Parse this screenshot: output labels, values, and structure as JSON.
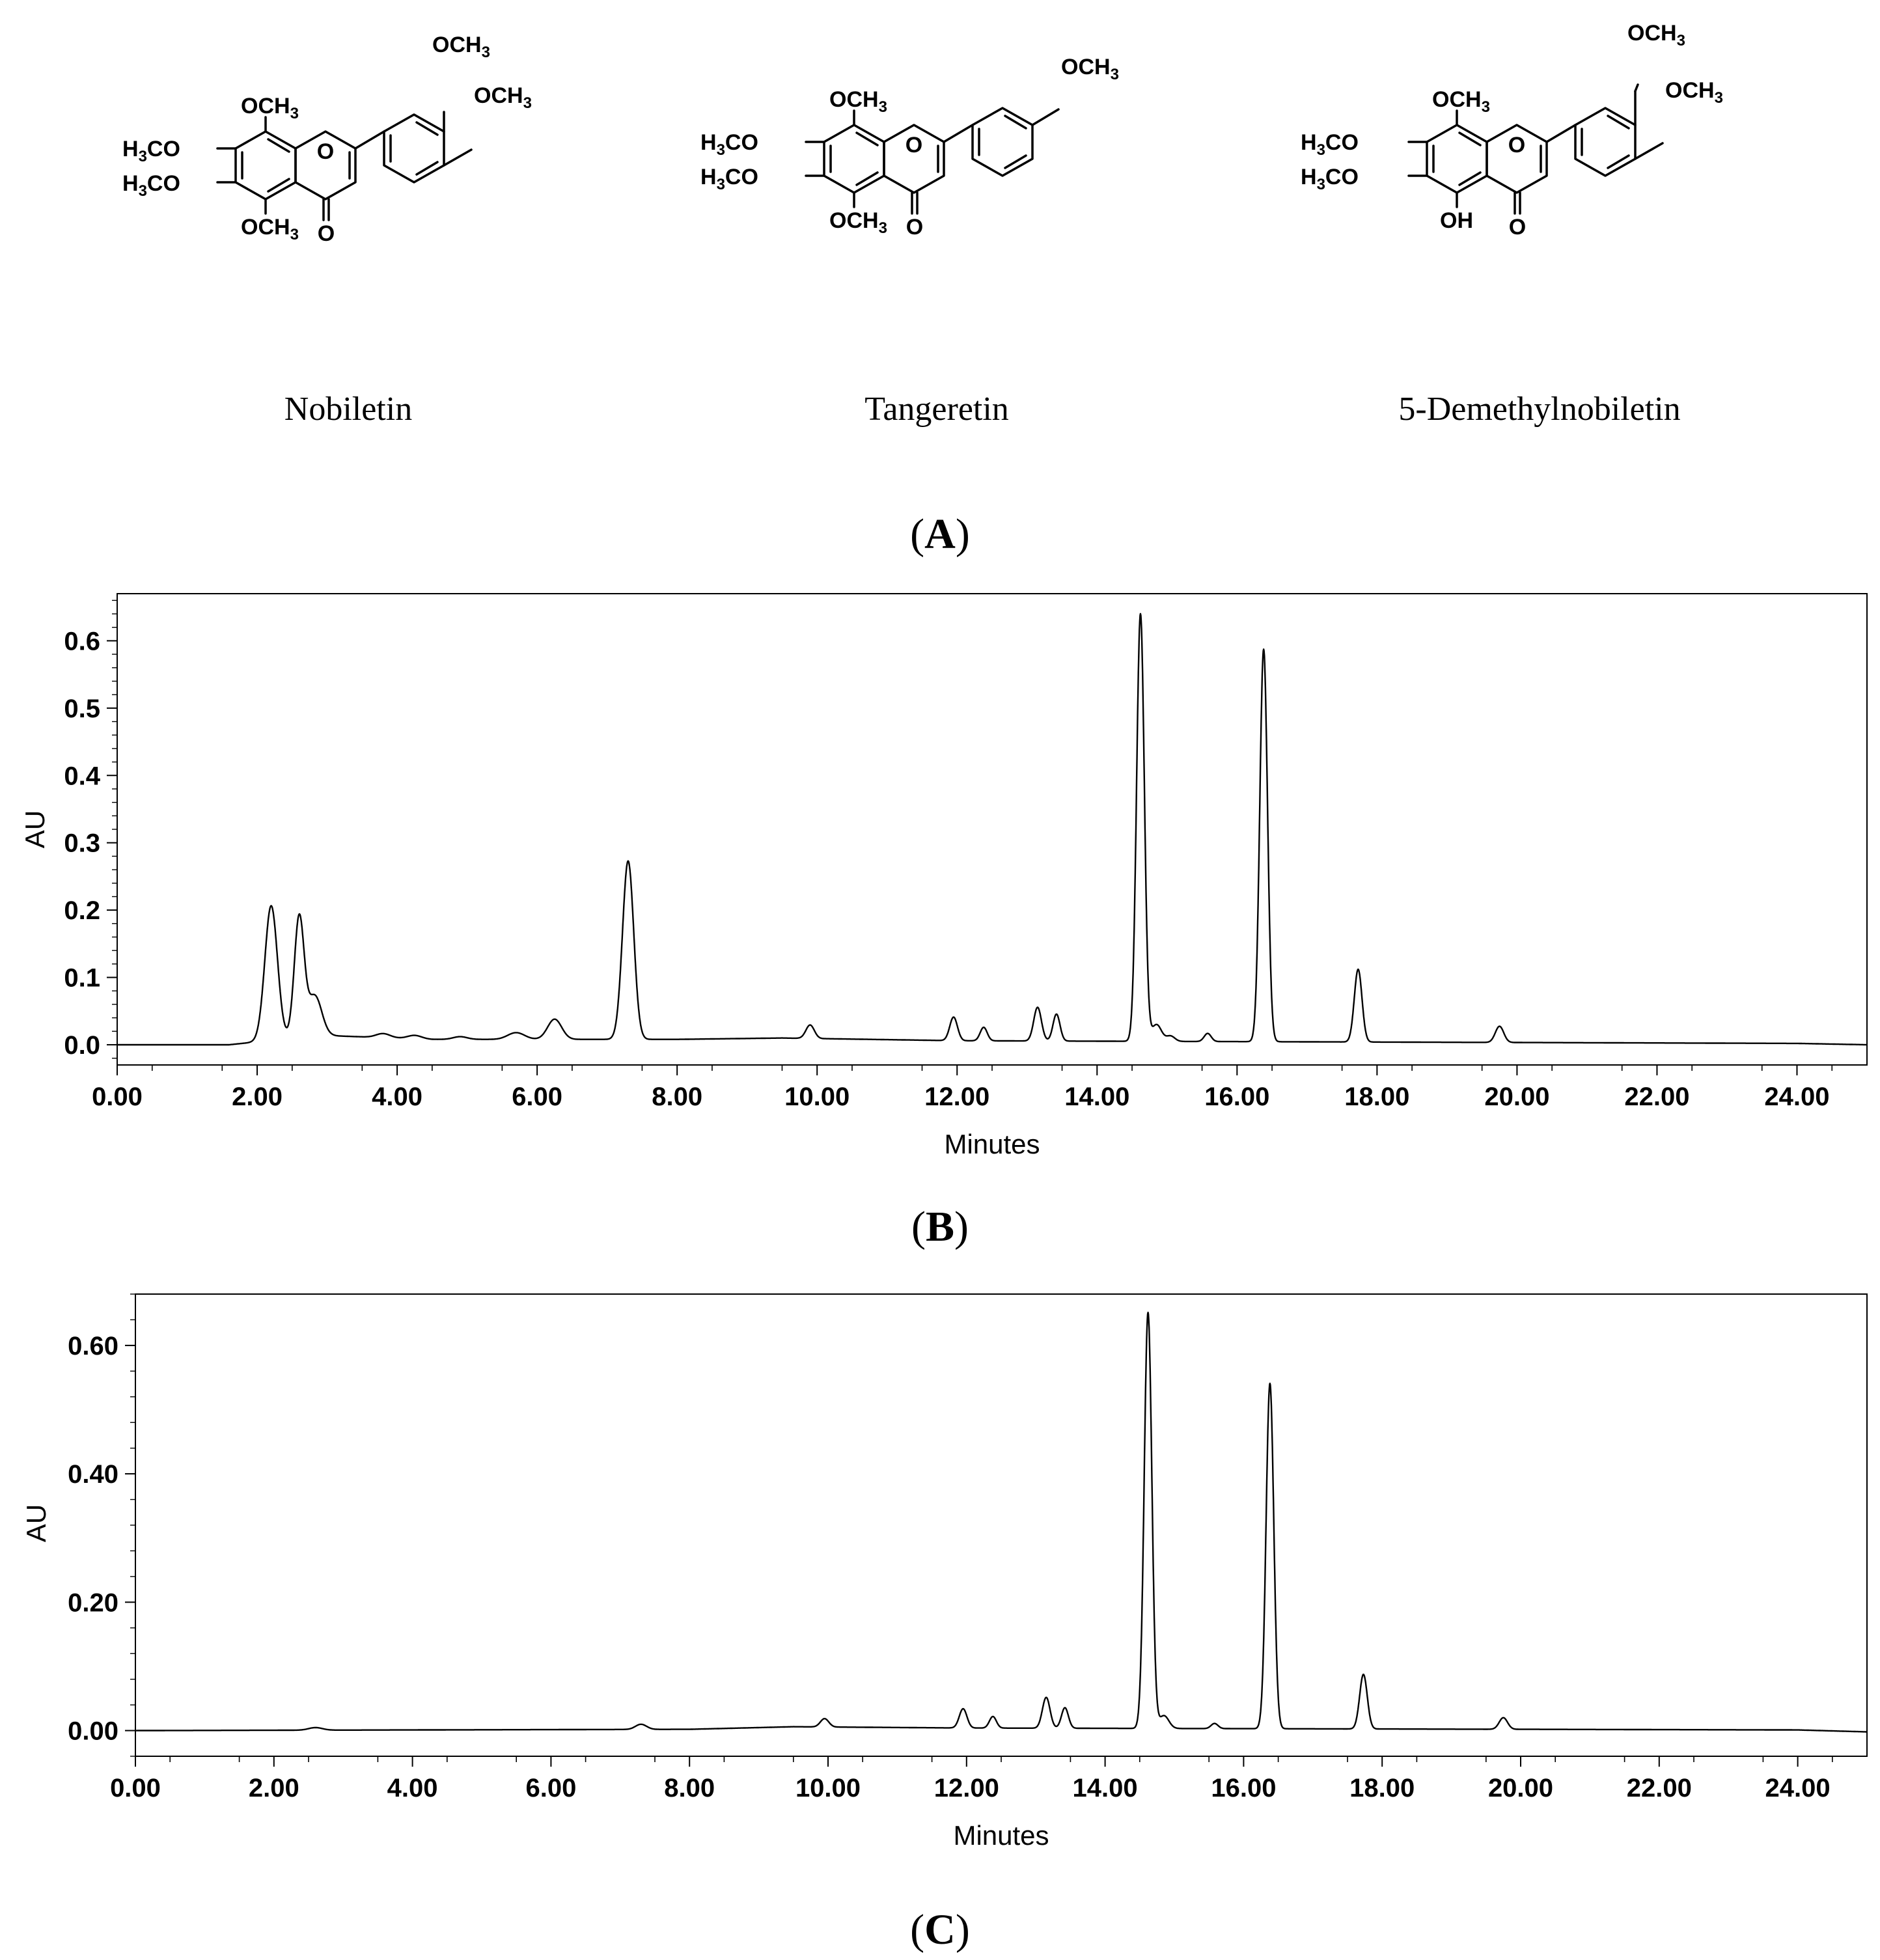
{
  "panel_a": {
    "label_prefix": "(",
    "label_letter": "A",
    "label_suffix": ")",
    "compounds": [
      {
        "name": "Nobiletin",
        "groups": {
          "g8": "OCH",
          "g8sub": "3",
          "g7pre": "H",
          "g7sub": "3",
          "g7post": "CO",
          "g6pre": "H",
          "g6sub": "3",
          "g6post": "CO",
          "g5": "OCH",
          "g5sub": "3",
          "c4": "O",
          "ring_o": "O",
          "g3p": "OCH",
          "g3psub": "3",
          "g4p": "OCH",
          "g4psub": "3"
        }
      },
      {
        "name": "Tangeretin",
        "groups": {
          "g8": "OCH",
          "g8sub": "3",
          "g7pre": "H",
          "g7sub": "3",
          "g7post": "CO",
          "g6pre": "H",
          "g6sub": "3",
          "g6post": "CO",
          "g5": "OCH",
          "g5sub": "3",
          "c4": "O",
          "ring_o": "O",
          "g4p": "OCH",
          "g4psub": "3"
        }
      },
      {
        "name": "5-Demethylnobiletin",
        "groups": {
          "g8": "OCH",
          "g8sub": "3",
          "g7pre": "H",
          "g7sub": "3",
          "g7post": "CO",
          "g6pre": "H",
          "g6sub": "3",
          "g6post": "CO",
          "g5": "OH",
          "c4": "O",
          "ring_o": "O",
          "g3p": "OCH",
          "g3psub": "3",
          "g4p": "OCH",
          "g4psub": "3"
        }
      }
    ]
  },
  "chart_data": [
    {
      "panel": "B",
      "label_prefix": "(",
      "label_letter": "B",
      "label_suffix": ")",
      "type": "line",
      "title": "",
      "xlabel": "Minutes",
      "ylabel": "AU",
      "xlim": [
        0,
        25
      ],
      "ylim": [
        -0.03,
        0.67
      ],
      "x_ticks": [
        "0.00",
        "2.00",
        "4.00",
        "6.00",
        "8.00",
        "10.00",
        "12.00",
        "14.00",
        "16.00",
        "18.00",
        "20.00",
        "22.00",
        "24.00"
      ],
      "y_ticks": [
        "0.0",
        "0.1",
        "0.2",
        "0.3",
        "0.4",
        "0.5",
        "0.6"
      ],
      "grid": false,
      "peaks": [
        {
          "rt": 2.2,
          "height": 0.2,
          "width": 0.09
        },
        {
          "rt": 2.6,
          "height": 0.178,
          "width": 0.07
        },
        {
          "rt": 2.82,
          "height": 0.06,
          "width": 0.1
        },
        {
          "rt": 3.8,
          "height": 0.006,
          "width": 0.1
        },
        {
          "rt": 4.25,
          "height": 0.005,
          "width": 0.1
        },
        {
          "rt": 4.9,
          "height": 0.004,
          "width": 0.1
        },
        {
          "rt": 5.7,
          "height": 0.01,
          "width": 0.12
        },
        {
          "rt": 6.25,
          "height": 0.03,
          "width": 0.1
        },
        {
          "rt": 7.3,
          "height": 0.265,
          "width": 0.08
        },
        {
          "rt": 9.9,
          "height": 0.02,
          "width": 0.06
        },
        {
          "rt": 11.95,
          "height": 0.035,
          "width": 0.055
        },
        {
          "rt": 12.38,
          "height": 0.02,
          "width": 0.05
        },
        {
          "rt": 13.15,
          "height": 0.05,
          "width": 0.055
        },
        {
          "rt": 13.42,
          "height": 0.04,
          "width": 0.05
        },
        {
          "rt": 14.62,
          "height": 0.635,
          "width": 0.055
        },
        {
          "rt": 14.85,
          "height": 0.025,
          "width": 0.07
        },
        {
          "rt": 15.05,
          "height": 0.008,
          "width": 0.06
        },
        {
          "rt": 15.58,
          "height": 0.012,
          "width": 0.05
        },
        {
          "rt": 16.38,
          "height": 0.583,
          "width": 0.055
        },
        {
          "rt": 17.73,
          "height": 0.108,
          "width": 0.055
        },
        {
          "rt": 19.75,
          "height": 0.024,
          "width": 0.06
        }
      ],
      "baseline": [
        [
          0,
          0.0
        ],
        [
          1.6,
          0.0
        ],
        [
          2.9,
          0.014
        ],
        [
          4.5,
          0.008
        ],
        [
          8.0,
          0.008
        ],
        [
          9.5,
          0.01
        ],
        [
          12.0,
          0.006
        ],
        [
          24.0,
          0.002
        ],
        [
          25.0,
          0.0
        ]
      ]
    },
    {
      "panel": "C",
      "label_prefix": "(",
      "label_letter": "C",
      "label_suffix": ")",
      "type": "line",
      "title": "",
      "xlabel": "Minutes",
      "ylabel": "AU",
      "xlim": [
        0,
        25
      ],
      "ylim": [
        -0.04,
        0.68
      ],
      "x_ticks": [
        "0.00",
        "2.00",
        "4.00",
        "6.00",
        "8.00",
        "10.00",
        "12.00",
        "14.00",
        "16.00",
        "18.00",
        "20.00",
        "22.00",
        "24.00"
      ],
      "y_ticks": [
        "0.00",
        "0.20",
        "0.40",
        "0.60"
      ],
      "grid": false,
      "peaks": [
        {
          "rt": 2.6,
          "height": 0.004,
          "width": 0.1
        },
        {
          "rt": 7.3,
          "height": 0.008,
          "width": 0.08
        },
        {
          "rt": 9.95,
          "height": 0.013,
          "width": 0.06
        },
        {
          "rt": 11.95,
          "height": 0.03,
          "width": 0.055
        },
        {
          "rt": 12.38,
          "height": 0.018,
          "width": 0.05
        },
        {
          "rt": 13.15,
          "height": 0.048,
          "width": 0.055
        },
        {
          "rt": 13.42,
          "height": 0.032,
          "width": 0.05
        },
        {
          "rt": 14.62,
          "height": 0.648,
          "width": 0.055
        },
        {
          "rt": 14.85,
          "height": 0.02,
          "width": 0.07
        },
        {
          "rt": 15.58,
          "height": 0.008,
          "width": 0.05
        },
        {
          "rt": 16.38,
          "height": 0.538,
          "width": 0.055
        },
        {
          "rt": 17.73,
          "height": 0.085,
          "width": 0.055
        },
        {
          "rt": 19.75,
          "height": 0.018,
          "width": 0.06
        }
      ],
      "baseline": [
        [
          0,
          0.0
        ],
        [
          8.0,
          0.002
        ],
        [
          9.5,
          0.006
        ],
        [
          12.0,
          0.004
        ],
        [
          24.0,
          0.001
        ],
        [
          25.0,
          -0.002
        ]
      ]
    }
  ]
}
